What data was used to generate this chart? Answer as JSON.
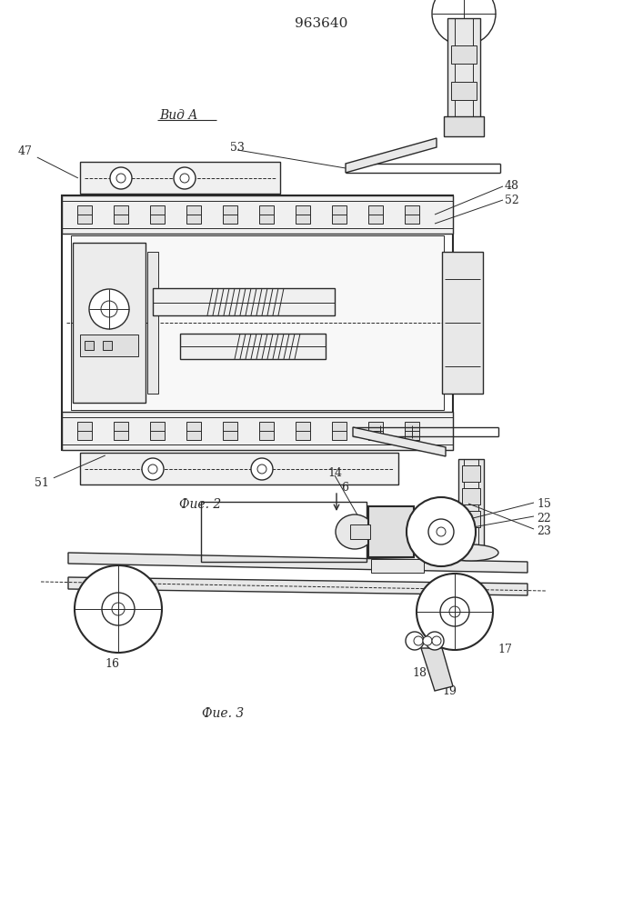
{
  "title": "963640",
  "bg_color": "#ffffff",
  "line_color": "#2a2a2a",
  "fig_label1": "Фие. 2",
  "fig_label2": "Фие. 3",
  "view_label": "Вид A"
}
